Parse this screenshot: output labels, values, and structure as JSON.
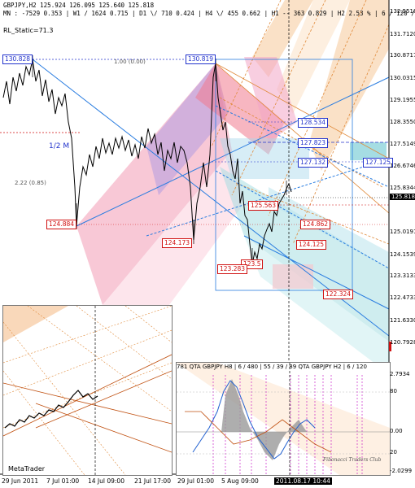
{
  "window": {
    "header_line1": "GBPJPY,H2  125.924 126.095 125.640 125.818",
    "header_line2": "MN : -7529  0.353 | W1 / 1624  0.715 | D1 \\/ 710  0.424 | H4 \\/ 455  0.662 | H1 -- 363  0.829 | H2  2.53 % | 6 / 120 / 55",
    "indicator_name": "RL_Static=71.3",
    "half_label": "1/2 M",
    "small_labels": [
      "2.22 (0.85)",
      "1.00 (0.00)",
      "1/2 M"
    ]
  },
  "price_labels": {
    "high_left": "130.828",
    "high_right": "130.819",
    "l_128_534": "128.534",
    "l_127_823": "127.823",
    "l_127_132": "127.132",
    "l_127_125": "127.125",
    "l_125_563": "125.563",
    "l_124_884": "124.884",
    "l_124_862": "124.862",
    "l_124_173": "124.173",
    "l_124_125": "124.125",
    "l_123_283": "123.283",
    "l_123_5": "123.5",
    "l_122_324": "122.324"
  },
  "price_axis": {
    "ticks": [
      "132.5518",
      "131.7120",
      "130.8717",
      "130.0315",
      "129.1955",
      "128.3550",
      "127.5149",
      "126.6746",
      "125.8344",
      "125.0191",
      "124.1539",
      "123.3133",
      "122.4733",
      "121.6330",
      "120.7928"
    ],
    "current": "125.818"
  },
  "date_axis": {
    "labels": [
      "29 Jun 2011",
      "7 Jul 01:00",
      "14 Jul 09:00",
      "21 Jul 17:00",
      "29 Jul 01:00",
      "5 Aug 09:00"
    ],
    "highlight": "2011.08.17 10:44"
  },
  "inset": {
    "label": "MetaTrader"
  },
  "indicator": {
    "header": "781  QTA GBPJPY H8 | 6 / 480 | 55 / 39 / 89  QTA GBPJPY H2 | 6 / 120",
    "axis": [
      "2.7934",
      "80",
      "0.00",
      "20",
      "-2.0299"
    ],
    "watermark": "Fibonacci Traders Club"
  },
  "colors": {
    "pink": "#f3a0b8",
    "violet": "#a78ad8",
    "cyan": "#7cd0d8",
    "orange": "#f0b070",
    "blue_line": "#2a7de0",
    "red_level": "#d01010",
    "label_blue": "#2233cc"
  }
}
